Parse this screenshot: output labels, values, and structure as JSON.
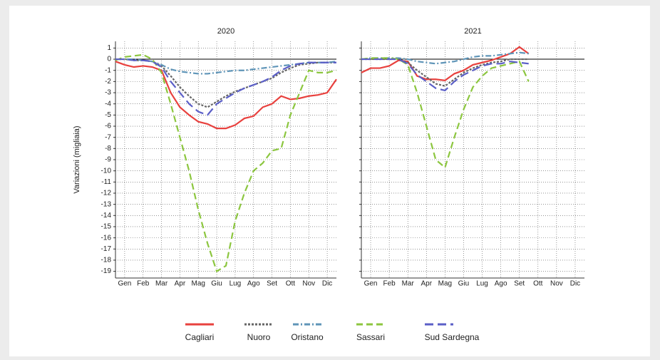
{
  "chart_data": [
    {
      "type": "line",
      "title": "2020",
      "ylabel": "Variazioni (migliaia)",
      "x": [
        0,
        0.5,
        1,
        1.5,
        2,
        2.5,
        3,
        3.5,
        4,
        4.5,
        5,
        5.5,
        6,
        6.5,
        7,
        7.5,
        8,
        8.5,
        9,
        9.5,
        10,
        10.5,
        11,
        11.5,
        12
      ],
      "xlim": [
        0,
        12
      ],
      "xticks": [
        {
          "value": 0.5,
          "label": "Gen"
        },
        {
          "value": 1.5,
          "label": "Feb"
        },
        {
          "value": 2.5,
          "label": "Mar"
        },
        {
          "value": 3.5,
          "label": "Apr"
        },
        {
          "value": 4.5,
          "label": "Mag"
        },
        {
          "value": 5.5,
          "label": "Giu"
        },
        {
          "value": 6.5,
          "label": "Lug"
        },
        {
          "value": 7.5,
          "label": "Ago"
        },
        {
          "value": 8.5,
          "label": "Set"
        },
        {
          "value": 9.5,
          "label": "Ott"
        },
        {
          "value": 10.5,
          "label": "Nov"
        },
        {
          "value": 11.5,
          "label": "Dic"
        }
      ],
      "ylim": [
        -19.6,
        1.6
      ],
      "yticks": [
        1,
        0,
        -1,
        -2,
        -3,
        -4,
        -5,
        -6,
        -7,
        -8,
        -9,
        -10,
        -11,
        -12,
        -13,
        -14,
        -15,
        -16,
        -17,
        -18,
        -19
      ],
      "grid": true,
      "series": [
        {
          "name": "Cagliari",
          "color": "#e8413e",
          "dash": "solid",
          "values": [
            -0.2,
            -0.5,
            -0.7,
            -0.6,
            -0.7,
            -1.0,
            -3.0,
            -4.3,
            -5.0,
            -5.6,
            -5.8,
            -6.2,
            -6.2,
            -5.9,
            -5.3,
            -5.1,
            -4.3,
            -4.0,
            -3.3,
            -3.6,
            -3.5,
            -3.3,
            -3.2,
            -3.0,
            -1.8
          ]
        },
        {
          "name": "Nuoro",
          "color": "#666666",
          "dash": "dotted",
          "values": [
            0,
            0,
            -0.1,
            -0.1,
            -0.2,
            -0.6,
            -1.5,
            -2.5,
            -3.3,
            -4.0,
            -4.3,
            -3.8,
            -3.3,
            -2.9,
            -2.6,
            -2.3,
            -2.0,
            -1.7,
            -1.2,
            -0.8,
            -0.5,
            -0.4,
            -0.3,
            -0.3,
            -0.3
          ]
        },
        {
          "name": "Oristano",
          "color": "#5f95b8",
          "dash": "dashdot",
          "values": [
            0,
            0,
            0,
            -0.1,
            -0.2,
            -0.5,
            -0.9,
            -1.1,
            -1.2,
            -1.3,
            -1.3,
            -1.2,
            -1.1,
            -1.0,
            -1.0,
            -0.9,
            -0.8,
            -0.7,
            -0.6,
            -0.5,
            -0.4,
            -0.3,
            -0.3,
            -0.3,
            -0.2
          ]
        },
        {
          "name": "Sassari",
          "color": "#8cc63f",
          "dash": "dashed",
          "values": [
            -0.1,
            0.2,
            0.3,
            0.4,
            0,
            -1.2,
            -4.0,
            -7.0,
            -10.0,
            -13.5,
            -16.5,
            -19.0,
            -18.5,
            -14.5,
            -12.0,
            -10.0,
            -9.3,
            -8.2,
            -8.0,
            -5.0,
            -3.0,
            -1.0,
            -1.2,
            -1.2,
            -1.0
          ]
        },
        {
          "name": "Sud Sardegna",
          "color": "#5b5fc7",
          "dash": "longdash",
          "values": [
            0,
            0,
            -0.1,
            -0.1,
            -0.2,
            -0.7,
            -2.0,
            -3.0,
            -4.0,
            -4.7,
            -5.0,
            -4.0,
            -3.5,
            -3.0,
            -2.6,
            -2.3,
            -2.0,
            -1.6,
            -1.0,
            -0.6,
            -0.4,
            -0.3,
            -0.3,
            -0.3,
            -0.3
          ]
        }
      ]
    },
    {
      "type": "line",
      "title": "2021",
      "x": [
        0,
        0.5,
        1,
        1.5,
        2,
        2.5,
        3,
        3.5,
        4,
        4.5,
        5,
        5.5,
        6,
        6.5,
        7,
        7.5,
        8,
        8.5,
        9
      ],
      "xlim": [
        0,
        12
      ],
      "xticks": [
        {
          "value": 0.5,
          "label": "Gen"
        },
        {
          "value": 1.5,
          "label": "Feb"
        },
        {
          "value": 2.5,
          "label": "Mar"
        },
        {
          "value": 3.5,
          "label": "Apr"
        },
        {
          "value": 4.5,
          "label": "Mag"
        },
        {
          "value": 5.5,
          "label": "Giu"
        },
        {
          "value": 6.5,
          "label": "Lug"
        },
        {
          "value": 7.5,
          "label": "Ago"
        },
        {
          "value": 8.5,
          "label": "Set"
        },
        {
          "value": 9.5,
          "label": "Ott"
        },
        {
          "value": 10.5,
          "label": "Nov"
        },
        {
          "value": 11.5,
          "label": "Dic"
        }
      ],
      "ylim": [
        -19.6,
        1.6
      ],
      "yticks": [
        1,
        0,
        -1,
        -2,
        -3,
        -4,
        -5,
        -6,
        -7,
        -8,
        -9,
        -10,
        -11,
        -12,
        -13,
        -14,
        -15,
        -16,
        -17,
        -18,
        -19
      ],
      "grid": true,
      "series": [
        {
          "name": "Cagliari",
          "color": "#e8413e",
          "dash": "solid",
          "values": [
            -1.2,
            -0.8,
            -0.8,
            -0.6,
            -0.1,
            -0.2,
            -1.5,
            -1.8,
            -1.8,
            -1.9,
            -1.3,
            -1.0,
            -0.5,
            -0.3,
            -0.1,
            0.2,
            0.5,
            1.1,
            0.5
          ]
        },
        {
          "name": "Nuoro",
          "color": "#666666",
          "dash": "dotted",
          "values": [
            0,
            0,
            0,
            0,
            0,
            -0.3,
            -1.0,
            -1.6,
            -2.2,
            -2.4,
            -1.8,
            -1.2,
            -0.8,
            -0.5,
            -0.3,
            -0.2,
            0,
            0,
            0
          ]
        },
        {
          "name": "Oristano",
          "color": "#5f95b8",
          "dash": "dashdot",
          "values": [
            0,
            0.1,
            0.1,
            0.1,
            0.1,
            0,
            -0.2,
            -0.3,
            -0.4,
            -0.3,
            -0.2,
            0,
            0.2,
            0.3,
            0.3,
            0.4,
            0.5,
            0.6,
            0.5
          ]
        },
        {
          "name": "Sassari",
          "color": "#8cc63f",
          "dash": "dashed",
          "values": [
            0,
            0.1,
            0.1,
            0.1,
            0,
            -0.5,
            -3.0,
            -6.0,
            -9.0,
            -9.7,
            -7.0,
            -4.5,
            -2.5,
            -1.5,
            -0.8,
            -0.6,
            -0.4,
            -0.2,
            -2.0
          ]
        },
        {
          "name": "Sud Sardegna",
          "color": "#5b5fc7",
          "dash": "longdash",
          "values": [
            0,
            0,
            0,
            0,
            0,
            -0.4,
            -1.4,
            -2.0,
            -2.6,
            -2.8,
            -2.0,
            -1.4,
            -1.0,
            -0.6,
            -0.4,
            -0.4,
            -0.2,
            -0.3,
            -0.4
          ]
        }
      ]
    }
  ]
}
